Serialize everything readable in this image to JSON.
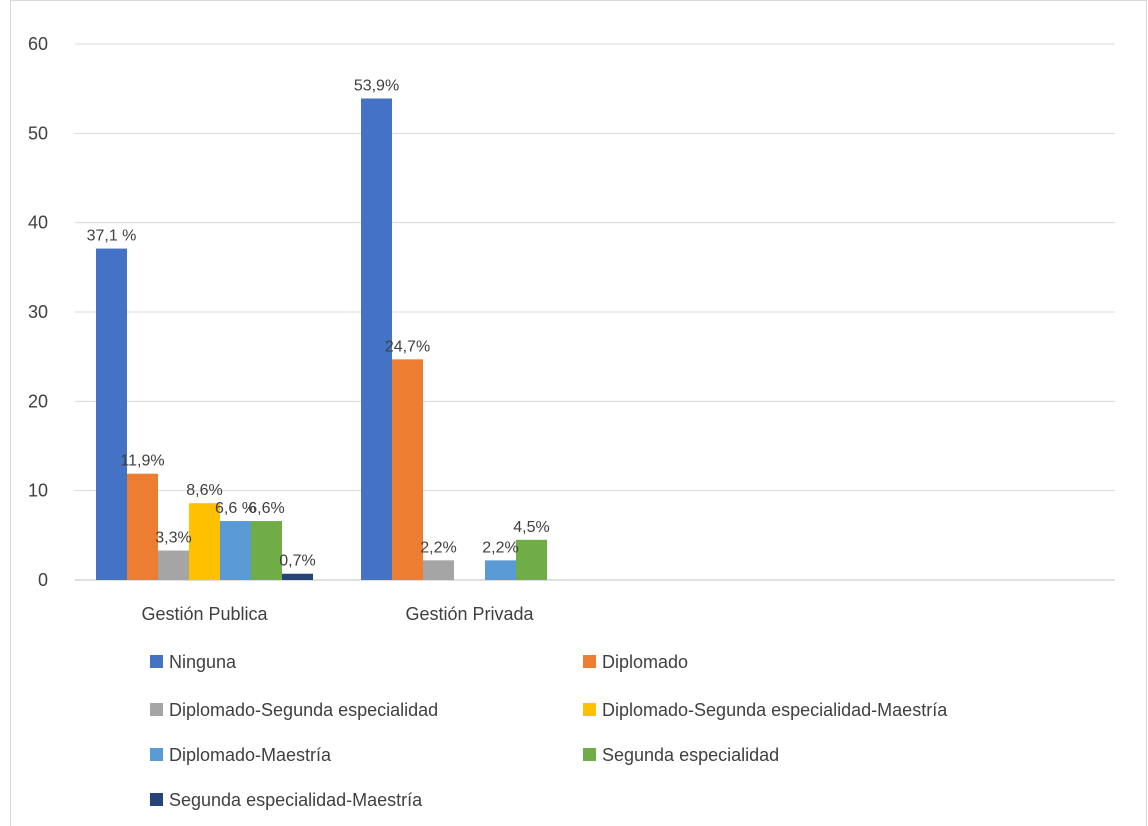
{
  "chart_data": {
    "type": "bar",
    "title": "",
    "xlabel": "",
    "ylabel": "",
    "ylim": [
      0,
      60
    ],
    "yticks": [
      0,
      10,
      20,
      30,
      40,
      50,
      60
    ],
    "categories": [
      "Gestión Publica",
      "Gestión Privada"
    ],
    "grid": true,
    "legend_position": "bottom",
    "series": [
      {
        "name": "Ninguna",
        "color": "#4472C4",
        "values": [
          37.1,
          53.9
        ],
        "labels": [
          "37,1 %",
          "53,9%"
        ]
      },
      {
        "name": "Diplomado",
        "color": "#ED7D31",
        "values": [
          11.9,
          24.7
        ],
        "labels": [
          "11,9%",
          "24,7%"
        ]
      },
      {
        "name": "Diplomado-Segunda especialidad",
        "color": "#A5A5A5",
        "values": [
          3.3,
          2.2
        ],
        "labels": [
          "3,3%",
          "2,2%"
        ]
      },
      {
        "name": "Diplomado-Segunda especialidad-Maestría",
        "color": "#FFC000",
        "values": [
          8.6,
          null
        ],
        "labels": [
          "8,6%",
          ""
        ]
      },
      {
        "name": "Diplomado-Maestría",
        "color": "#5B9BD5",
        "values": [
          6.6,
          2.2
        ],
        "labels": [
          "6,6 %",
          "2,2%"
        ]
      },
      {
        "name": "Segunda especialidad",
        "color": "#70AD47",
        "values": [
          6.6,
          4.5
        ],
        "labels": [
          "6,6%",
          "4,5%"
        ]
      },
      {
        "name": "Segunda especialidad-Maestría",
        "color": "#264478",
        "values": [
          0.7,
          null
        ],
        "labels": [
          "0,7%",
          ""
        ]
      }
    ]
  }
}
